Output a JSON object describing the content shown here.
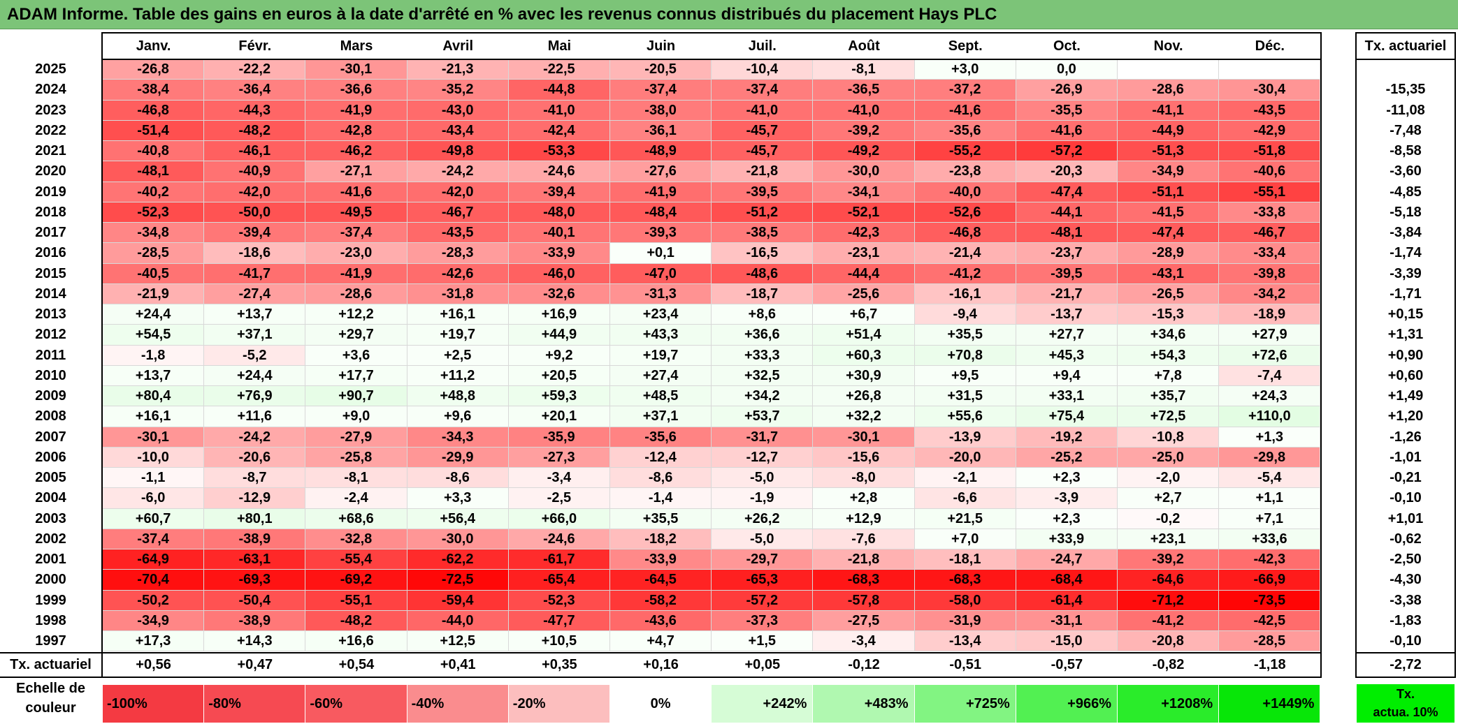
{
  "title": "ADAM Informe. Table des gains en euros à la date d'arrêté en % avec les revenus connus distribués du placement Hays PLC",
  "months": [
    "Janv.",
    "Févr.",
    "Mars",
    "Avril",
    "Mai",
    "Juin",
    "Juil.",
    "Août",
    "Sept.",
    "Oct.",
    "Nov.",
    "Déc."
  ],
  "rate_header": "Tx. actuariel",
  "rows": [
    {
      "year": "2025",
      "values": [
        "-26,8",
        "-22,2",
        "-30,1",
        "-21,3",
        "-22,5",
        "-20,5",
        "-10,4",
        "-8,1",
        "+3,0",
        "0,0",
        "",
        ""
      ],
      "rate": ""
    },
    {
      "year": "2024",
      "values": [
        "-38,4",
        "-36,4",
        "-36,6",
        "-35,2",
        "-44,8",
        "-37,4",
        "-37,4",
        "-36,5",
        "-37,2",
        "-26,9",
        "-28,6",
        "-30,4"
      ],
      "rate": "-15,35"
    },
    {
      "year": "2023",
      "values": [
        "-46,8",
        "-44,3",
        "-41,9",
        "-43,0",
        "-41,0",
        "-38,0",
        "-41,0",
        "-41,0",
        "-41,6",
        "-35,5",
        "-41,1",
        "-43,5"
      ],
      "rate": "-11,08"
    },
    {
      "year": "2022",
      "values": [
        "-51,4",
        "-48,2",
        "-42,8",
        "-43,4",
        "-42,4",
        "-36,1",
        "-45,7",
        "-39,2",
        "-35,6",
        "-41,6",
        "-44,9",
        "-42,9"
      ],
      "rate": "-7,48"
    },
    {
      "year": "2021",
      "values": [
        "-40,8",
        "-46,1",
        "-46,2",
        "-49,8",
        "-53,3",
        "-48,9",
        "-45,7",
        "-49,2",
        "-55,2",
        "-57,2",
        "-51,3",
        "-51,8"
      ],
      "rate": "-8,58"
    },
    {
      "year": "2020",
      "values": [
        "-48,1",
        "-40,9",
        "-27,1",
        "-24,2",
        "-24,6",
        "-27,6",
        "-21,8",
        "-30,0",
        "-23,8",
        "-20,3",
        "-34,9",
        "-40,6"
      ],
      "rate": "-3,60"
    },
    {
      "year": "2019",
      "values": [
        "-40,2",
        "-42,0",
        "-41,6",
        "-42,0",
        "-39,4",
        "-41,9",
        "-39,5",
        "-34,1",
        "-40,0",
        "-47,4",
        "-51,1",
        "-55,1"
      ],
      "rate": "-4,85"
    },
    {
      "year": "2018",
      "values": [
        "-52,3",
        "-50,0",
        "-49,5",
        "-46,7",
        "-48,0",
        "-48,4",
        "-51,2",
        "-52,1",
        "-52,6",
        "-44,1",
        "-41,5",
        "-33,8"
      ],
      "rate": "-5,18"
    },
    {
      "year": "2017",
      "values": [
        "-34,8",
        "-39,4",
        "-37,4",
        "-43,5",
        "-40,1",
        "-39,3",
        "-38,5",
        "-42,3",
        "-46,8",
        "-48,1",
        "-47,4",
        "-46,7"
      ],
      "rate": "-3,84"
    },
    {
      "year": "2016",
      "values": [
        "-28,5",
        "-18,6",
        "-23,0",
        "-28,3",
        "-33,9",
        "+0,1",
        "-16,5",
        "-23,1",
        "-21,4",
        "-23,7",
        "-28,9",
        "-33,4"
      ],
      "rate": "-1,74"
    },
    {
      "year": "2015",
      "values": [
        "-40,5",
        "-41,7",
        "-41,9",
        "-42,6",
        "-46,0",
        "-47,0",
        "-48,6",
        "-44,4",
        "-41,2",
        "-39,5",
        "-43,1",
        "-39,8"
      ],
      "rate": "-3,39"
    },
    {
      "year": "2014",
      "values": [
        "-21,9",
        "-27,4",
        "-28,6",
        "-31,8",
        "-32,6",
        "-31,3",
        "-18,7",
        "-25,6",
        "-16,1",
        "-21,7",
        "-26,5",
        "-34,2"
      ],
      "rate": "-1,71"
    },
    {
      "year": "2013",
      "values": [
        "+24,4",
        "+13,7",
        "+12,2",
        "+16,1",
        "+16,9",
        "+23,4",
        "+8,6",
        "+6,7",
        "-9,4",
        "-13,7",
        "-15,3",
        "-18,9"
      ],
      "rate": "+0,15"
    },
    {
      "year": "2012",
      "values": [
        "+54,5",
        "+37,1",
        "+29,7",
        "+19,7",
        "+44,9",
        "+43,3",
        "+36,6",
        "+51,4",
        "+35,5",
        "+27,7",
        "+34,6",
        "+27,9"
      ],
      "rate": "+1,31"
    },
    {
      "year": "2011",
      "values": [
        "-1,8",
        "-5,2",
        "+3,6",
        "+2,5",
        "+9,2",
        "+19,7",
        "+33,3",
        "+60,3",
        "+70,8",
        "+45,3",
        "+54,3",
        "+72,6"
      ],
      "rate": "+0,90"
    },
    {
      "year": "2010",
      "values": [
        "+13,7",
        "+24,4",
        "+17,7",
        "+11,2",
        "+20,5",
        "+27,4",
        "+32,5",
        "+30,9",
        "+9,5",
        "+9,4",
        "+7,8",
        "-7,4"
      ],
      "rate": "+0,60"
    },
    {
      "year": "2009",
      "values": [
        "+80,4",
        "+76,9",
        "+90,7",
        "+48,8",
        "+59,3",
        "+48,5",
        "+34,2",
        "+26,8",
        "+31,5",
        "+33,1",
        "+35,7",
        "+24,3"
      ],
      "rate": "+1,49"
    },
    {
      "year": "2008",
      "values": [
        "+16,1",
        "+11,6",
        "+9,0",
        "+9,6",
        "+20,1",
        "+37,1",
        "+53,7",
        "+32,2",
        "+55,6",
        "+75,4",
        "+72,5",
        "+110,0"
      ],
      "rate": "+1,20"
    },
    {
      "year": "2007",
      "values": [
        "-30,1",
        "-24,2",
        "-27,9",
        "-34,3",
        "-35,9",
        "-35,6",
        "-31,7",
        "-30,1",
        "-13,9",
        "-19,2",
        "-10,8",
        "+1,3"
      ],
      "rate": "-1,26"
    },
    {
      "year": "2006",
      "values": [
        "-10,0",
        "-20,6",
        "-25,8",
        "-29,9",
        "-27,3",
        "-12,4",
        "-12,7",
        "-15,6",
        "-20,0",
        "-25,2",
        "-25,0",
        "-29,8"
      ],
      "rate": "-1,01"
    },
    {
      "year": "2005",
      "values": [
        "-1,1",
        "-8,7",
        "-8,1",
        "-8,6",
        "-3,4",
        "-8,6",
        "-5,0",
        "-8,0",
        "-2,1",
        "+2,3",
        "-2,0",
        "-5,4"
      ],
      "rate": "-0,21"
    },
    {
      "year": "2004",
      "values": [
        "-6,0",
        "-12,9",
        "-2,4",
        "+3,3",
        "-2,5",
        "-1,4",
        "-1,9",
        "+2,8",
        "-6,6",
        "-3,9",
        "+2,7",
        "+1,1"
      ],
      "rate": "-0,10"
    },
    {
      "year": "2003",
      "values": [
        "+60,7",
        "+80,1",
        "+68,6",
        "+56,4",
        "+66,0",
        "+35,5",
        "+26,2",
        "+12,9",
        "+21,5",
        "+2,3",
        "-0,2",
        "+7,1"
      ],
      "rate": "+1,01"
    },
    {
      "year": "2002",
      "values": [
        "-37,4",
        "-38,9",
        "-32,8",
        "-30,0",
        "-24,6",
        "-18,2",
        "-5,0",
        "-7,6",
        "+7,0",
        "+33,9",
        "+23,1",
        "+33,6"
      ],
      "rate": "-0,62"
    },
    {
      "year": "2001",
      "values": [
        "-64,9",
        "-63,1",
        "-55,4",
        "-62,2",
        "-61,7",
        "-33,9",
        "-29,7",
        "-21,8",
        "-18,1",
        "-24,7",
        "-39,2",
        "-42,3"
      ],
      "rate": "-2,50"
    },
    {
      "year": "2000",
      "values": [
        "-70,4",
        "-69,3",
        "-69,2",
        "-72,5",
        "-65,4",
        "-64,5",
        "-65,3",
        "-68,3",
        "-68,3",
        "-68,4",
        "-64,6",
        "-66,9"
      ],
      "rate": "-4,30"
    },
    {
      "year": "1999",
      "values": [
        "-50,2",
        "-50,4",
        "-55,1",
        "-59,4",
        "-52,3",
        "-58,2",
        "-57,2",
        "-57,8",
        "-58,0",
        "-61,4",
        "-71,2",
        "-73,5"
      ],
      "rate": "-3,38"
    },
    {
      "year": "1998",
      "values": [
        "-34,9",
        "-38,9",
        "-48,2",
        "-44,0",
        "-47,7",
        "-43,6",
        "-37,3",
        "-27,5",
        "-31,9",
        "-31,1",
        "-41,2",
        "-42,5"
      ],
      "rate": "-1,83"
    },
    {
      "year": "1997",
      "values": [
        "+17,3",
        "+14,3",
        "+16,6",
        "+12,5",
        "+10,5",
        "+4,7",
        "+1,5",
        "-3,4",
        "-13,4",
        "-15,0",
        "-20,8",
        "-28,5"
      ],
      "rate": "-0,10"
    }
  ],
  "footer": {
    "label": "Tx. actuariel",
    "values": [
      "+0,56",
      "+0,47",
      "+0,54",
      "+0,41",
      "+0,35",
      "+0,16",
      "+0,05",
      "-0,12",
      "-0,51",
      "-0,57",
      "-0,82",
      "-1,18"
    ],
    "rate": "-2,72"
  },
  "scale": {
    "label_line1": "Echelle de",
    "label_line2": "couleur",
    "items": [
      {
        "label": "-100%",
        "color": "#f43a42"
      },
      {
        "label": "-80%",
        "color": "#f64a52"
      },
      {
        "label": "-60%",
        "color": "#f85a60"
      },
      {
        "label": "-40%",
        "color": "#fa8c8e"
      },
      {
        "label": "-20%",
        "color": "#fcbebe"
      },
      {
        "label": "0%",
        "color": "#ffffff"
      },
      {
        "label": "+242%",
        "color": "#d6fcd6"
      },
      {
        "label": "+483%",
        "color": "#b0f8b0"
      },
      {
        "label": "+725%",
        "color": "#82f482"
      },
      {
        "label": "+966%",
        "color": "#52f052"
      },
      {
        "label": "+1208%",
        "color": "#2aec2a"
      },
      {
        "label": "+1449%",
        "color": "#08e608"
      }
    ],
    "rate_line1": "Tx.",
    "rate_line2": "actua. 10%",
    "rate_color": "#00ee00"
  }
}
